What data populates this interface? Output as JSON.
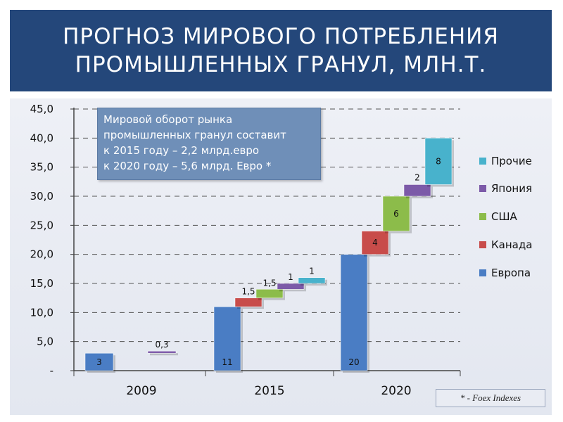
{
  "title": "ПРОГНОЗ МИРОВОГО ПОТРЕБЛЕНИЯ ПРОМЫШЛЕННЫХ ГРАНУЛ, МЛН.Т.",
  "infobox": {
    "lines": [
      "Мировой оборот рынка",
      "промышленных гранул составит",
      "к 2015 году – 2,2 млрд.евро",
      "к 2020 году – 5,6 млрд. Евро *"
    ]
  },
  "source": "* - Foex Indexes",
  "colors": {
    "Европа": "#4a7dc4",
    "Канада": "#c84c4a",
    "США": "#8cbc4a",
    "Япония": "#7c5aa8",
    "Прочие": "#48b2cc"
  },
  "chart_data": {
    "type": "bar",
    "subtype": "stacked-waterfall",
    "categories": [
      "2009",
      "2015",
      "2020"
    ],
    "ylim": [
      0,
      45
    ],
    "yticks": [
      "-",
      "5,0",
      "10,0",
      "15,0",
      "20,0",
      "25,0",
      "30,0",
      "35,0",
      "40,0",
      "45,0"
    ],
    "grid": "dashed-horizontal",
    "legend_position": "right",
    "legend": [
      "Прочие",
      "Япония",
      "США",
      "Канада",
      "Европа"
    ],
    "series": [
      {
        "name": "Европа",
        "values": [
          3,
          11,
          20
        ],
        "labels": [
          "3",
          "11",
          "20"
        ]
      },
      {
        "name": "Канада",
        "values": [
          0,
          1.5,
          4
        ],
        "labels": [
          "",
          "1,5",
          "4"
        ]
      },
      {
        "name": "США",
        "values": [
          0,
          1.5,
          6
        ],
        "labels": [
          "",
          "1,5",
          "6"
        ]
      },
      {
        "name": "Япония",
        "values": [
          0.3,
          1,
          2
        ],
        "labels": [
          "0,3",
          "1",
          "2"
        ]
      },
      {
        "name": "Прочие",
        "values": [
          0,
          1,
          8
        ],
        "labels": [
          "",
          "1",
          "8"
        ]
      }
    ]
  }
}
